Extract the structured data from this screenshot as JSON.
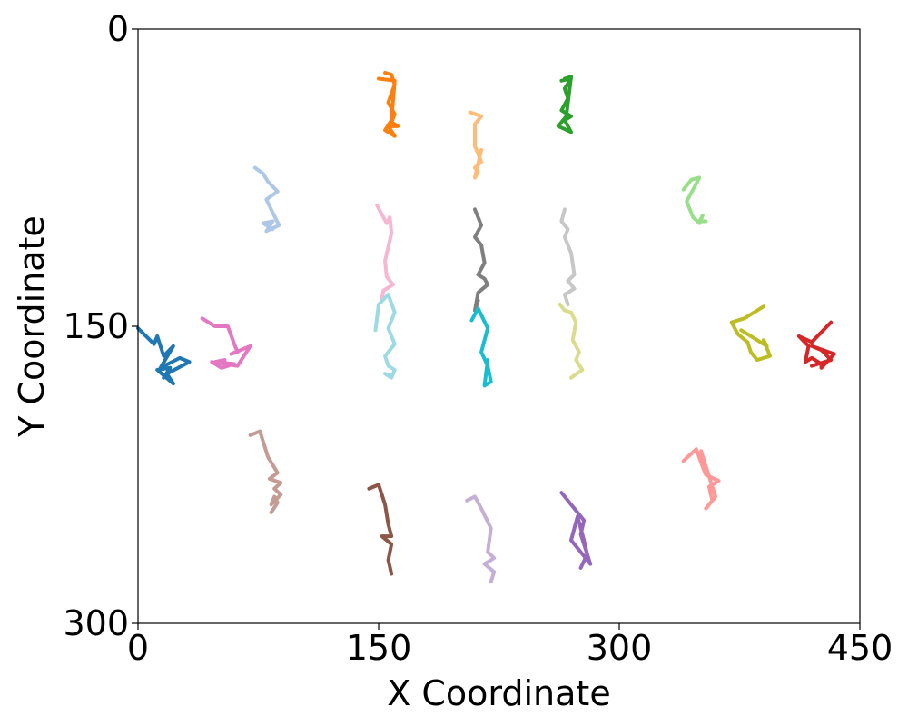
{
  "chart_data": {
    "type": "line",
    "title": "",
    "xlabel": "X Coordinate",
    "ylabel": "Y Coordinate",
    "xlim": [
      0,
      450
    ],
    "ylim": [
      300,
      0
    ],
    "y_inverted": true,
    "xticks": [
      0,
      150,
      300,
      450
    ],
    "yticks": [
      0,
      150,
      300
    ],
    "xtick_labels": [
      "0",
      "150",
      "300",
      "450"
    ],
    "ytick_labels": [
      "0",
      "150",
      "300"
    ],
    "grid": false,
    "legend": "none",
    "series": [
      {
        "color": "#1f77b4",
        "x": [
          0,
          10,
          12,
          16,
          22,
          14,
          26,
          32,
          18,
          22,
          12,
          20,
          16
        ],
        "y": [
          151,
          159,
          155,
          165,
          160,
          171,
          166,
          168,
          174,
          179,
          172,
          171,
          176
        ]
      },
      {
        "color": "#aec7e8",
        "x": [
          73,
          78,
          81,
          87,
          80,
          86,
          88,
          80,
          84,
          78,
          84
        ],
        "y": [
          70,
          73,
          77,
          82,
          86,
          96,
          99,
          102,
          97,
          98,
          101
        ]
      },
      {
        "color": "#ff7f0e",
        "x": [
          154,
          158,
          160,
          156,
          160,
          158,
          162,
          156,
          160,
          154,
          158,
          160,
          150
        ],
        "y": [
          22,
          23,
          28,
          37,
          43,
          47,
          49,
          49,
          54,
          51,
          46,
          26,
          25
        ]
      },
      {
        "color": "#ffbb78",
        "x": [
          207,
          214,
          210,
          210,
          214,
          210,
          212,
          210,
          214
        ],
        "y": [
          42,
          44,
          48,
          59,
          67,
          70,
          72,
          75,
          61
        ]
      },
      {
        "color": "#2ca02c",
        "x": [
          264,
          270,
          266,
          268,
          264,
          270,
          266,
          270,
          262,
          267,
          270,
          266
        ],
        "y": [
          26,
          25,
          30,
          35,
          41,
          44,
          46,
          52,
          49,
          44,
          24,
          25
        ]
      },
      {
        "color": "#98df8a",
        "x": [
          340,
          345,
          350,
          342,
          346,
          350,
          352,
          350,
          354
        ],
        "y": [
          81,
          76,
          75,
          87,
          95,
          98,
          94,
          97,
          97
        ]
      },
      {
        "color": "#f7b6d2",
        "x": [
          149,
          155,
          157,
          158,
          154,
          155,
          159,
          153,
          152
        ],
        "y": [
          89,
          98,
          95,
          103,
          117,
          125,
          129,
          132,
          136
        ]
      },
      {
        "color": "#7f7f7f",
        "x": [
          210,
          214,
          210,
          214,
          216,
          212,
          216,
          218,
          212,
          210,
          212
        ],
        "y": [
          91,
          99,
          105,
          109,
          118,
          124,
          126,
          129,
          133,
          142,
          137
        ]
      },
      {
        "color": "#c7c7c7",
        "x": [
          266,
          264,
          268,
          266,
          270,
          272,
          268,
          272,
          266,
          268
        ],
        "y": [
          91,
          97,
          101,
          105,
          113,
          124,
          127,
          131,
          134,
          139
        ]
      },
      {
        "color": "#e377c2",
        "x": [
          40,
          48,
          56,
          60,
          62,
          58,
          70,
          62,
          46,
          52,
          60,
          48,
          54
        ],
        "y": [
          146,
          150,
          150,
          159,
          163,
          164,
          160,
          170,
          168,
          171,
          169,
          168,
          167
        ]
      },
      {
        "color": "#9edae5",
        "x": [
          148,
          150,
          156,
          160,
          156,
          160,
          154,
          156,
          160,
          158,
          154,
          158
        ],
        "y": [
          152,
          139,
          134,
          143,
          151,
          159,
          165,
          170,
          172,
          176,
          174,
          175
        ]
      },
      {
        "color": "#17becf",
        "x": [
          208,
          212,
          218,
          214,
          218,
          220,
          216,
          218
        ],
        "y": [
          147,
          141,
          151,
          163,
          170,
          178,
          180,
          167
        ]
      },
      {
        "color": "#dbdb8d",
        "x": [
          263,
          266,
          270,
          273,
          271,
          275,
          273,
          277,
          270
        ],
        "y": [
          139,
          142,
          143,
          148,
          157,
          163,
          167,
          172,
          176
        ]
      },
      {
        "color": "#bcbd22",
        "x": [
          390,
          378,
          370,
          374,
          380,
          382,
          386,
          394,
          390,
          392,
          380,
          376
        ],
        "y": [
          140,
          146,
          148,
          154,
          158,
          163,
          167,
          165,
          157,
          160,
          154,
          152
        ]
      },
      {
        "color": "#d62728",
        "x": [
          432,
          420,
          412,
          418,
          416,
          420,
          426,
          426,
          434,
          420,
          426,
          432,
          420
        ],
        "y": [
          148,
          158,
          155,
          160,
          168,
          166,
          169,
          171,
          164,
          160,
          162,
          167,
          170
        ]
      },
      {
        "color": "#c49c94",
        "x": [
          70,
          76,
          81,
          87,
          82,
          89,
          85,
          89,
          83,
          85,
          87,
          83
        ],
        "y": [
          205,
          203,
          216,
          224,
          227,
          229,
          232,
          235,
          240,
          236,
          239,
          244
        ]
      },
      {
        "color": "#ff9896",
        "x": [
          340,
          348,
          352,
          354,
          362,
          356,
          358,
          354,
          360,
          351
        ],
        "y": [
          218,
          212,
          221,
          225,
          228,
          231,
          238,
          242,
          236,
          213
        ]
      },
      {
        "color": "#8c5648",
        "x": [
          144,
          150,
          154,
          156,
          158,
          152,
          158,
          156,
          158
        ],
        "y": [
          232,
          230,
          240,
          250,
          256,
          256,
          260,
          268,
          275
        ]
      },
      {
        "color": "#c5b0d5",
        "x": [
          205,
          210,
          214,
          220,
          218,
          222,
          216,
          222,
          220
        ],
        "y": [
          238,
          236,
          242,
          252,
          264,
          267,
          270,
          274,
          279
        ]
      },
      {
        "color": "#9467bd",
        "x": [
          264,
          270,
          272,
          278,
          276,
          282,
          270,
          274,
          278,
          280,
          276
        ],
        "y": [
          234,
          240,
          242,
          248,
          255,
          270,
          258,
          246,
          258,
          265,
          272
        ]
      }
    ]
  }
}
